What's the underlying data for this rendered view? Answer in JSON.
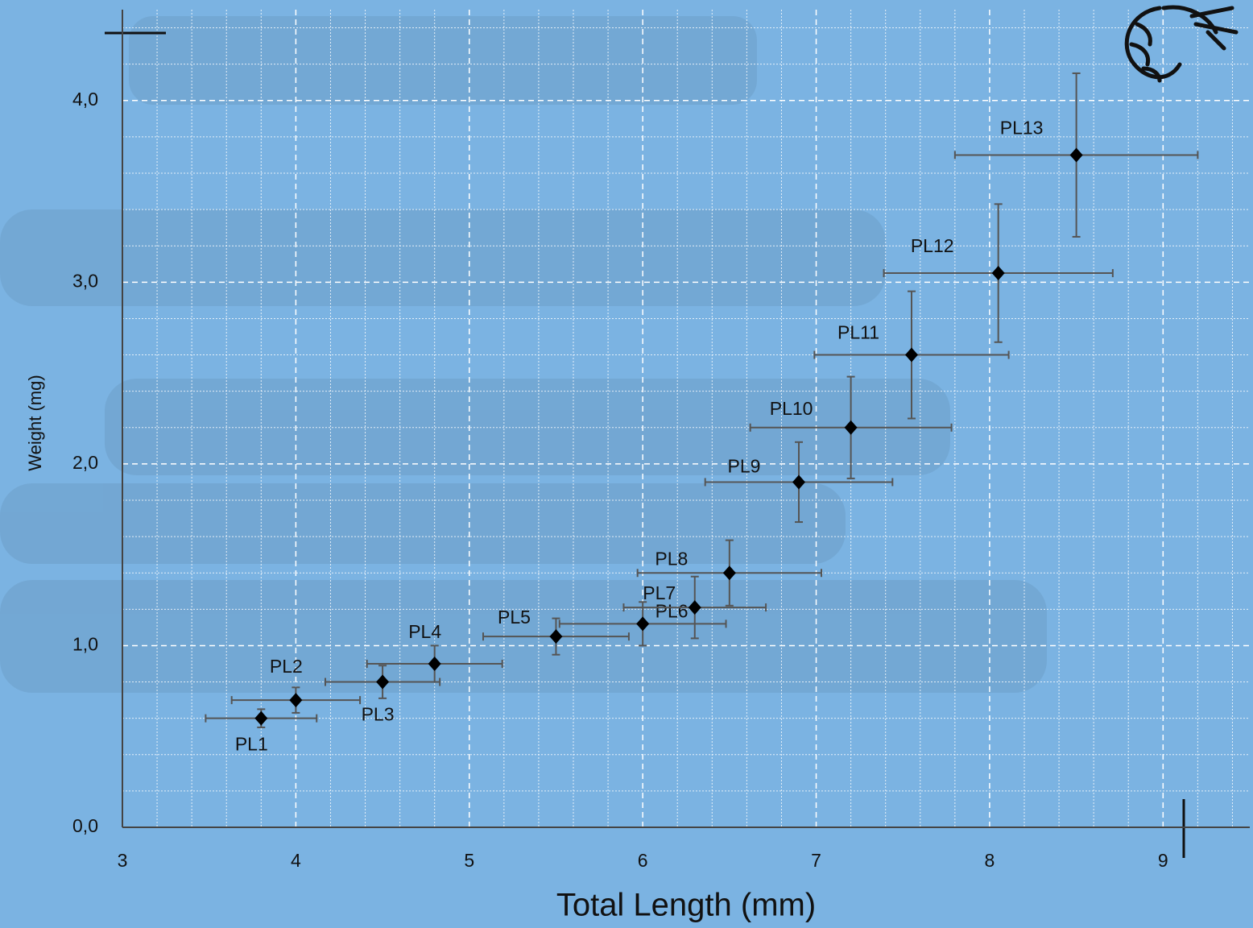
{
  "chart_data": {
    "type": "scatter",
    "x_label": "Total Length (mm)",
    "y_label": "Weight (mg)",
    "labels": [
      "PL1",
      "PL2",
      "PL3",
      "PL4",
      "PL5",
      "PL6",
      "PL7",
      "PL8",
      "PL9",
      "PL10",
      "PL11",
      "PL12",
      "PL13"
    ],
    "x": [
      3.8,
      4.0,
      4.5,
      4.8,
      5.5,
      6.0,
      6.3,
      6.5,
      6.9,
      7.2,
      7.55,
      8.05,
      8.5
    ],
    "values": [
      0.6,
      0.7,
      0.8,
      0.9,
      1.05,
      1.12,
      1.21,
      1.4,
      1.9,
      2.2,
      2.6,
      3.05,
      3.7
    ],
    "xerr": [
      0.32,
      0.37,
      0.33,
      0.39,
      0.42,
      0.48,
      0.41,
      0.53,
      0.54,
      0.58,
      0.56,
      0.66,
      0.7
    ],
    "yerr": [
      0.05,
      0.07,
      0.09,
      0.1,
      0.1,
      0.12,
      0.17,
      0.18,
      0.22,
      0.28,
      0.35,
      0.38,
      0.45
    ],
    "color": "#000000",
    "error_color": "#555555",
    "xlim": [
      3,
      9.5
    ],
    "xticks": [
      3,
      4,
      5,
      6,
      7,
      8,
      9
    ],
    "ylim": [
      0,
      4.5
    ],
    "yticks": [
      {
        "value": 0,
        "label": "0,0"
      },
      {
        "value": 1,
        "label": "1,0"
      },
      {
        "value": 2,
        "label": "2,0"
      },
      {
        "value": 3,
        "label": "3,0"
      },
      {
        "value": 4,
        "label": "4,0"
      }
    ],
    "grid": true,
    "minor_grid": true
  }
}
